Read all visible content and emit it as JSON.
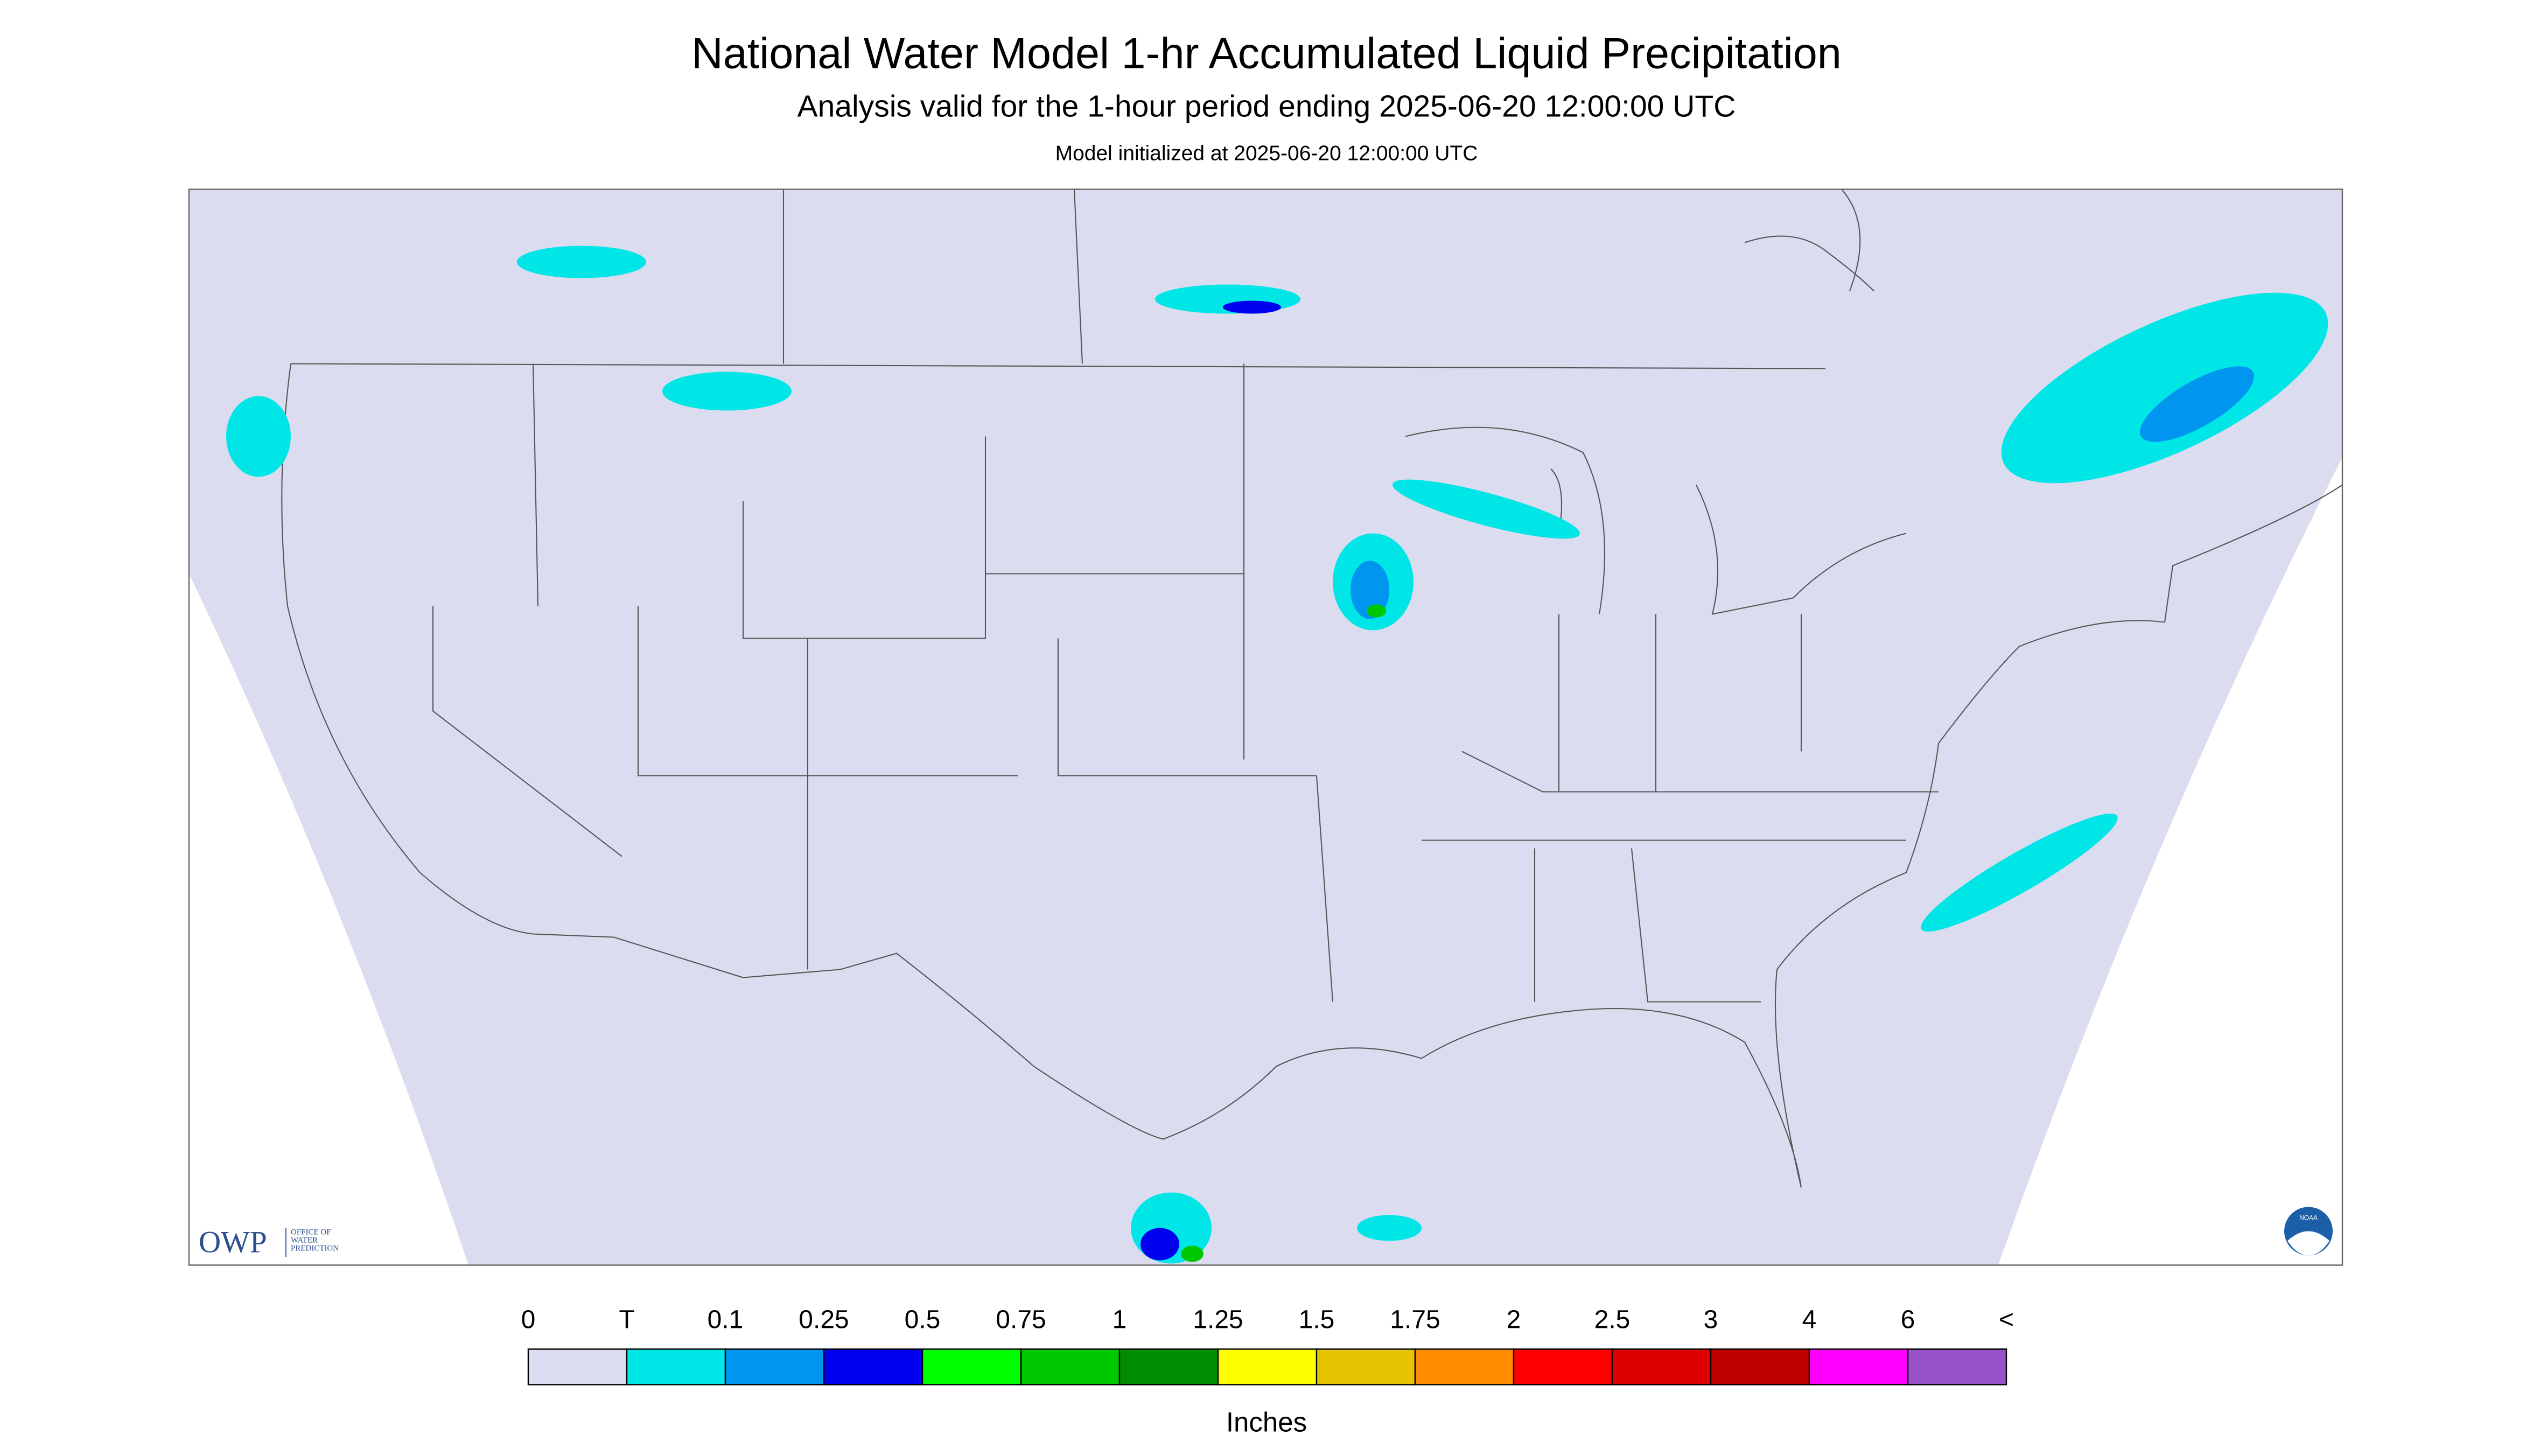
{
  "header": {
    "title": "National Water Model 1-hr Accumulated Liquid Precipitation",
    "subtitle": "Analysis valid for the 1-hour period ending 2025-06-20 12:00:00 UTC",
    "init": "Model initialized at 2025-06-20 12:00:00 UTC"
  },
  "logos": {
    "owp": "OWP",
    "owp_text": [
      "OFFICE OF",
      "WATER",
      "PREDICTION"
    ],
    "noaa": "NOAA"
  },
  "legend": {
    "labels": [
      "0",
      "T",
      "0.1",
      "0.25",
      "0.5",
      "0.75",
      "1",
      "1.25",
      "1.5",
      "1.75",
      "2",
      "2.5",
      "3",
      "4",
      "6",
      "<"
    ],
    "colors": [
      "#dcdcf0",
      "#00e6e6",
      "#0096f0",
      "#0000f0",
      "#00ff00",
      "#00c800",
      "#008c00",
      "#ffff00",
      "#e6c300",
      "#ff8c00",
      "#ff0000",
      "#dc0000",
      "#be0000",
      "#ff00ff",
      "#9650c8"
    ],
    "units": "Inches"
  }
}
